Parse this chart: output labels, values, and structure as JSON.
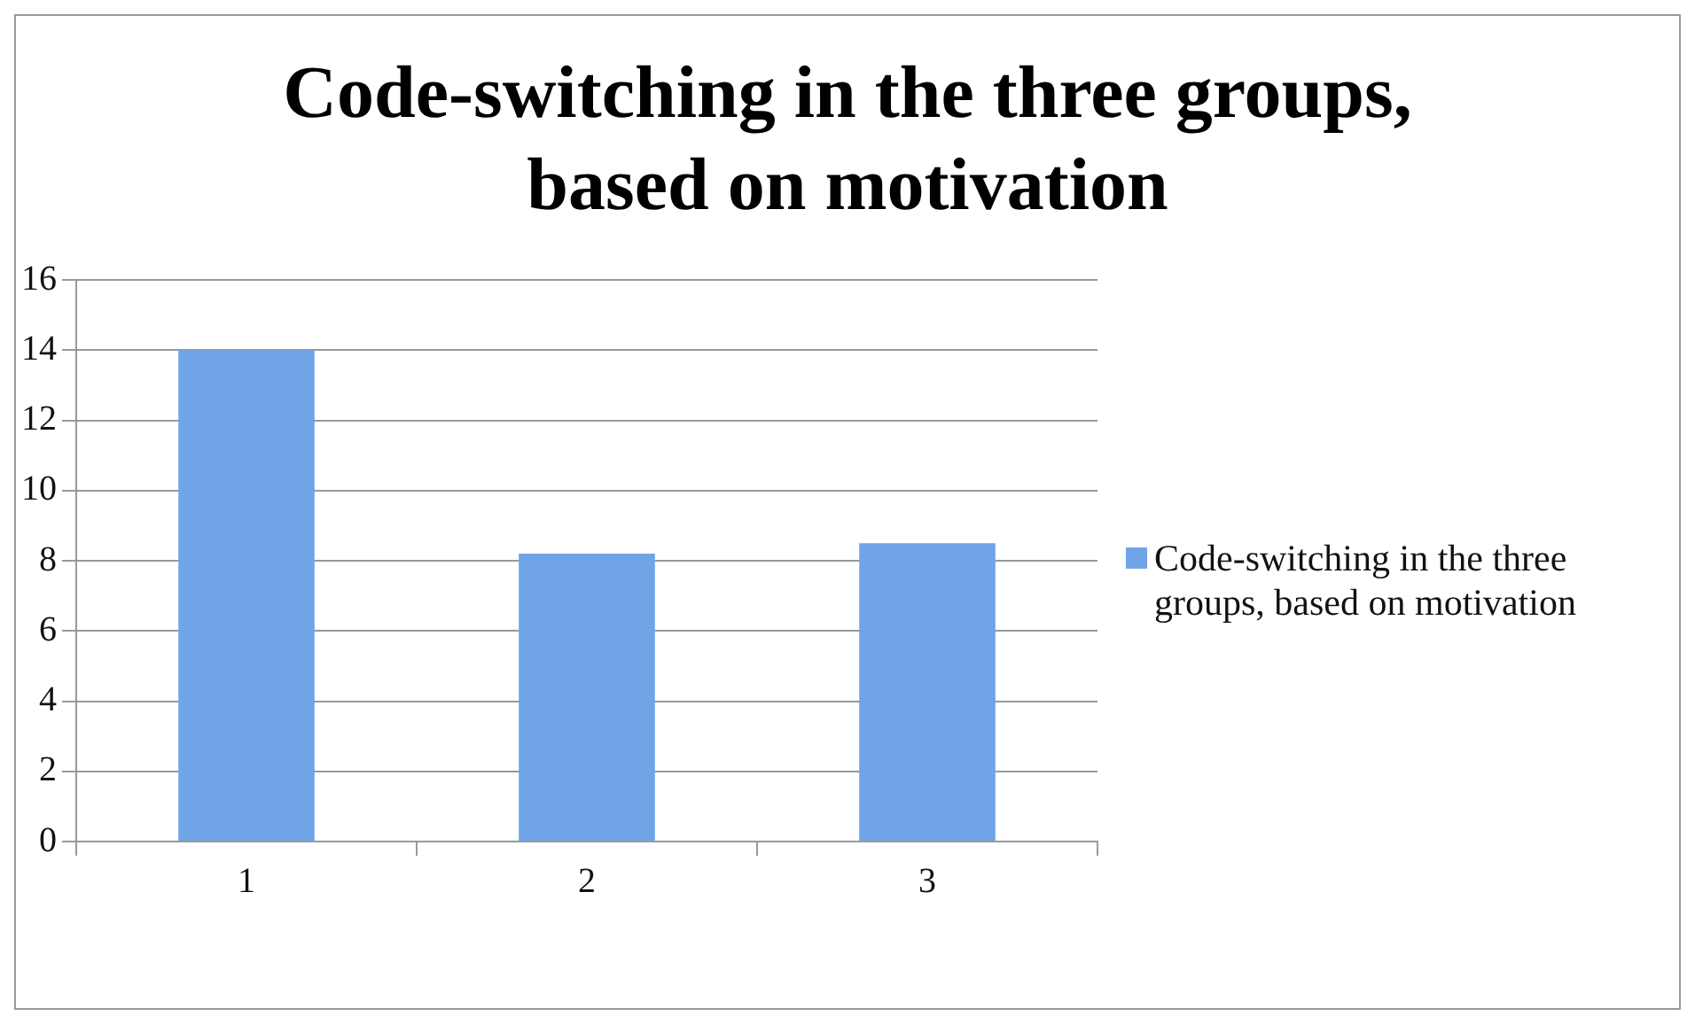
{
  "chart_data": {
    "type": "bar",
    "title": "Code-switching in the three groups, based on motivation",
    "categories": [
      "1",
      "2",
      "3"
    ],
    "series": [
      {
        "name": "Code-switching in the three groups, based on motivation",
        "color": "#6fa5e6",
        "values": [
          14,
          8.2,
          8.5
        ]
      }
    ],
    "ylim": [
      0,
      16
    ],
    "yticks": [
      0,
      2,
      4,
      6,
      8,
      10,
      12,
      14,
      16
    ],
    "grid": "y",
    "legend": "right"
  }
}
